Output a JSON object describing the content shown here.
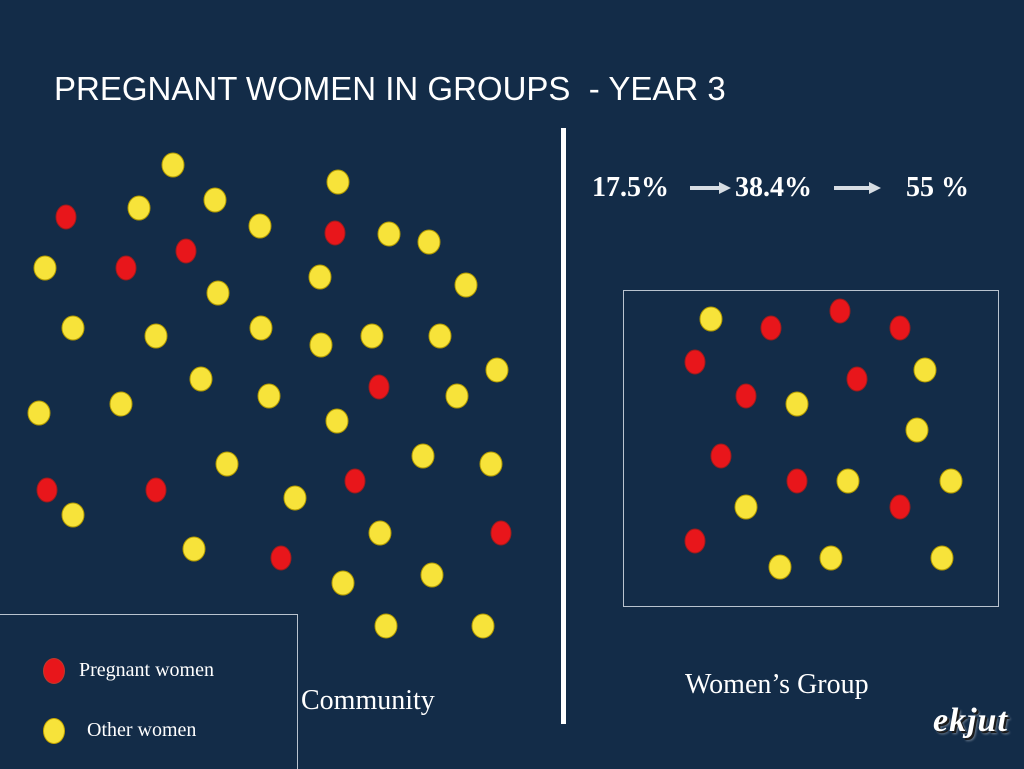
{
  "title": "PREGNANT WOMEN IN GROUPS  - YEAR 3",
  "colors": {
    "background": "#132c48",
    "pregnant": "#e8161b",
    "other": "#f7e33a",
    "text": "#ffffff"
  },
  "stats": {
    "values": [
      "17.5%",
      "38.4%",
      "55 %"
    ],
    "arrow_icon": "right-arrow-icon"
  },
  "captions": {
    "community": "Community",
    "group": "Women’s Group"
  },
  "legend": {
    "pregnant_label": "Pregnant women",
    "other_label": "Other women"
  },
  "logo": "ekjut"
}
